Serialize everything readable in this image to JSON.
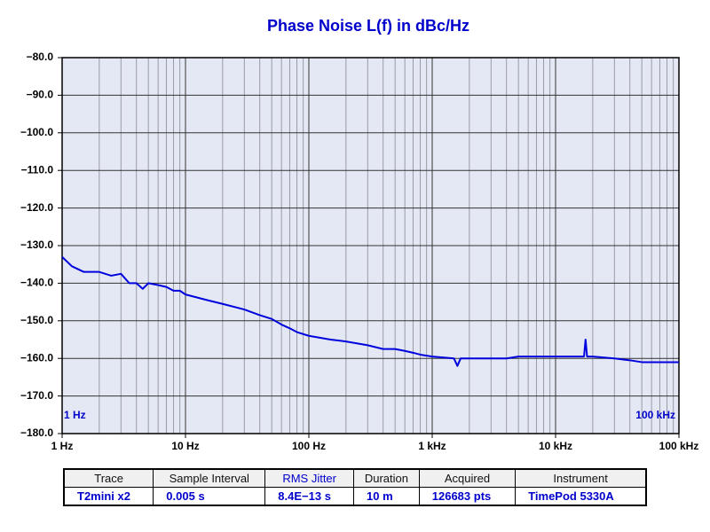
{
  "chart_data": {
    "type": "line",
    "title": "Phase Noise L(f) in dBc/Hz",
    "xscale": "log",
    "grid": true,
    "xlim": [
      1,
      100000
    ],
    "ylim": [
      -180,
      -80
    ],
    "xticks": [
      {
        "value": 1,
        "label": "1 Hz"
      },
      {
        "value": 10,
        "label": "10 Hz"
      },
      {
        "value": 100,
        "label": "100 Hz"
      },
      {
        "value": 1000,
        "label": "1 kHz"
      },
      {
        "value": 10000,
        "label": "10 kHz"
      },
      {
        "value": 100000,
        "label": "100 kHz"
      }
    ],
    "yticks": [
      {
        "value": -80,
        "label": "−80.0"
      },
      {
        "value": -90,
        "label": "−90.0"
      },
      {
        "value": -100,
        "label": "−100.0"
      },
      {
        "value": -110,
        "label": "−110.0"
      },
      {
        "value": -120,
        "label": "−120.0"
      },
      {
        "value": -130,
        "label": "−130.0"
      },
      {
        "value": -140,
        "label": "−140.0"
      },
      {
        "value": -150,
        "label": "−150.0"
      },
      {
        "value": -160,
        "label": "−160.0"
      },
      {
        "value": -170,
        "label": "−170.0"
      },
      {
        "value": -180,
        "label": "−180.0"
      }
    ],
    "annotations": [
      "1 Hz",
      "100 kHz"
    ],
    "x": [
      1,
      1.2,
      1.5,
      2,
      2.5,
      3,
      3.5,
      4,
      4.5,
      5,
      6,
      7,
      8,
      9,
      10,
      15,
      20,
      30,
      40,
      50,
      60,
      70,
      80,
      100,
      150,
      200,
      300,
      400,
      500,
      600,
      700,
      800,
      1000,
      1500,
      1600,
      1700,
      2000,
      3000,
      4000,
      5000,
      7000,
      10000,
      15000,
      17000,
      17500,
      18000,
      20000,
      30000,
      40000,
      50000,
      70000,
      100000
    ],
    "series": [
      {
        "color": "#0000dd",
        "values": [
          -133,
          -135.5,
          -137,
          -137,
          -138,
          -137.5,
          -140,
          -140,
          -141.5,
          -140,
          -140.5,
          -141,
          -142,
          -142,
          -143,
          -144.5,
          -145.5,
          -147,
          -148.5,
          -149.5,
          -151,
          -152,
          -153,
          -154,
          -155,
          -155.5,
          -156.5,
          -157.5,
          -157.5,
          -158,
          -158.5,
          -159,
          -159.5,
          -160,
          -162,
          -160,
          -160,
          -160,
          -160,
          -159.5,
          -159.5,
          -159.5,
          -159.5,
          -159.5,
          -155,
          -159.5,
          -159.5,
          -160,
          -160.5,
          -161,
          -161,
          -161
        ]
      }
    ]
  },
  "table": {
    "headers": [
      "Trace",
      "Sample Interval",
      "RMS Jitter",
      "Duration",
      "Acquired",
      "Instrument"
    ],
    "rows": [
      [
        "T2mini x2",
        "0.005 s",
        "8.4E−13 s",
        "10 m",
        "126683 pts",
        "TimePod 5330A"
      ]
    ]
  }
}
